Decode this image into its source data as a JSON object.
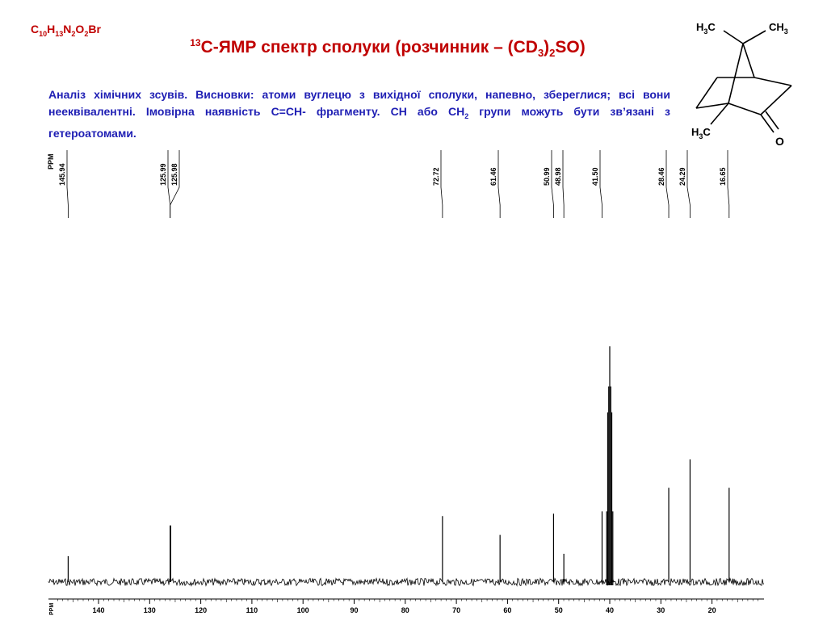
{
  "header": {
    "formula_parts": [
      "C",
      "10",
      "H",
      "13",
      "N",
      "2",
      "O",
      "2",
      "Br"
    ],
    "title_sup": "13",
    "title_main": "C-ЯМР спектр сполуки (розчинник – (CD",
    "title_sub": "3",
    "title_close": ")",
    "title_sub2": "2",
    "title_end": "SO)"
  },
  "analysis": {
    "text": "Аналіз хімічних зсувів. Висновки: атоми вуглецю з вихідної сполуки, напевно, збереглися; всі вони нееквівалентні. Імовірна наявність С=СН- фрагменту.  СН або СН",
    "sub": "2",
    "text_end": " групи можуть бути зв’язані з гетероатомами."
  },
  "structure": {
    "label_h3c_top_left": "H3C",
    "label_ch3_top_right": "CH3",
    "label_h3c_bottom": "H3C",
    "label_o": "O"
  },
  "chart_data": {
    "type": "line",
    "title": "",
    "xlabel": "PPM",
    "ylabel": "",
    "xlim": [
      150,
      5
    ],
    "x_reversed": true,
    "x_ticks": [
      140,
      130,
      120,
      110,
      100,
      90,
      80,
      70,
      60,
      50,
      40,
      30,
      20
    ],
    "peak_list_header": "PPM",
    "peaks": [
      {
        "label": "145.94",
        "ppm": 145.94,
        "intensity": 0.11
      },
      {
        "label": "125.99",
        "ppm": 125.99,
        "intensity": 0.24
      },
      {
        "label": "125.98",
        "ppm": 125.98,
        "intensity": 0.24
      },
      {
        "label": "72.72",
        "ppm": 72.72,
        "intensity": 0.28
      },
      {
        "label": "61.46",
        "ppm": 61.46,
        "intensity": 0.2
      },
      {
        "label": "50.99",
        "ppm": 50.99,
        "intensity": 0.29
      },
      {
        "label": "48.98",
        "ppm": 48.98,
        "intensity": 0.12
      },
      {
        "label": "41.50",
        "ppm": 41.5,
        "intensity": 0.3
      },
      {
        "label": "28.46",
        "ppm": 28.46,
        "intensity": 0.4
      },
      {
        "label": "24.29",
        "ppm": 24.29,
        "intensity": 0.52
      },
      {
        "label": "16.65",
        "ppm": 16.65,
        "intensity": 0.4
      }
    ],
    "solvent_multiplet": {
      "center_ppm": 40.0,
      "lines_ppm": [
        40.6,
        40.4,
        40.2,
        40.0,
        39.8,
        39.6,
        39.4
      ],
      "intensities": [
        0.3,
        0.72,
        0.83,
        1.0,
        0.83,
        0.72,
        0.3
      ]
    },
    "colors": {
      "axis": "#000000",
      "spectrum": "#000000",
      "labels": "#000000"
    }
  }
}
